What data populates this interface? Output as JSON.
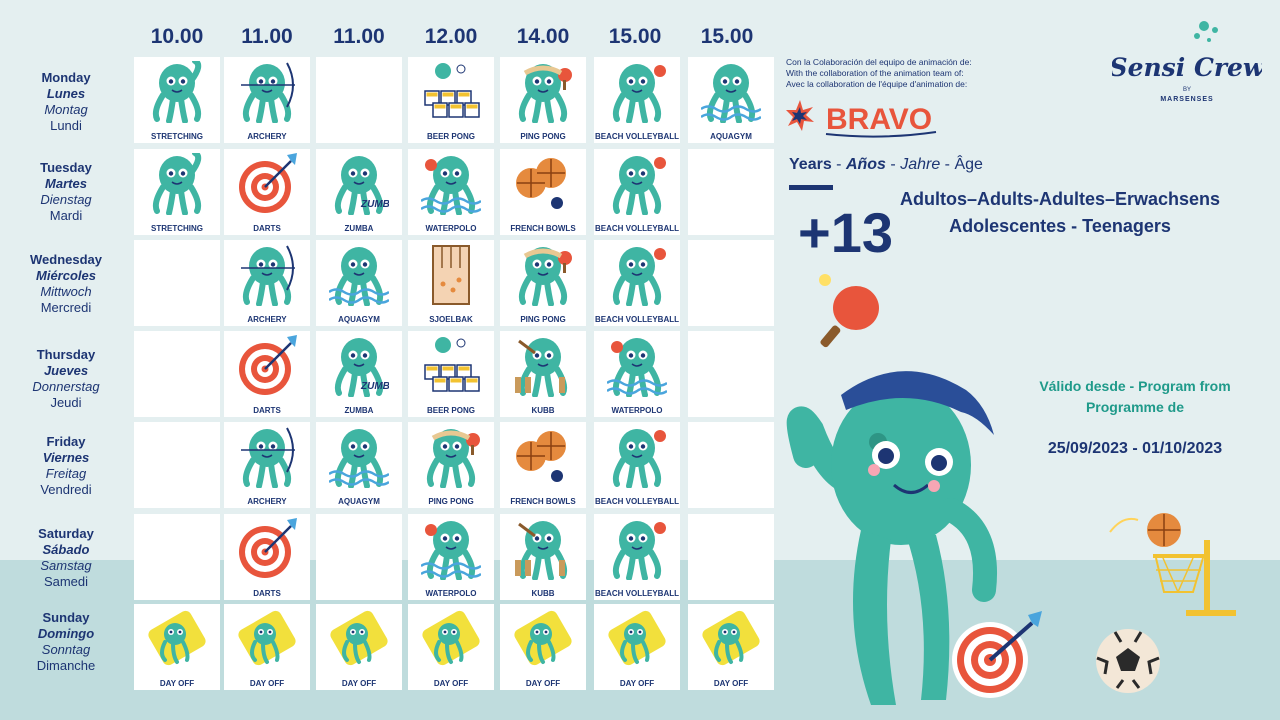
{
  "times": [
    "10.00",
    "11.00",
    "11.00",
    "12.00",
    "14.00",
    "15.00",
    "15.00"
  ],
  "days": [
    {
      "en": "Monday",
      "es": "Lunes",
      "de": "Montag",
      "fr": "Lundi"
    },
    {
      "en": "Tuesday",
      "es": "Martes",
      "de": "Dienstag",
      "fr": "Mardi"
    },
    {
      "en": "Wednesday",
      "es": "Miércoles",
      "de": "Mittwoch",
      "fr": "Mercredi"
    },
    {
      "en": "Thursday",
      "es": "Jueves",
      "de": "Donnerstag",
      "fr": "Jeudi"
    },
    {
      "en": "Friday",
      "es": "Viernes",
      "de": "Freitag",
      "fr": "Vendredi"
    },
    {
      "en": "Saturday",
      "es": "Sábado",
      "de": "Samstag",
      "fr": "Samedi"
    },
    {
      "en": "Sunday",
      "es": "Domingo",
      "de": "Sonntag",
      "fr": "Dimanche"
    }
  ],
  "schedule": [
    [
      "STRETCHING",
      "ARCHERY",
      "",
      "BEER PONG",
      "PING PONG",
      "BEACH VOLLEYBALL",
      "AQUAGYM"
    ],
    [
      "STRETCHING",
      "DARTS",
      "ZUMBA",
      "WATERPOLO",
      "FRENCH BOWLS",
      "BEACH VOLLEYBALL",
      ""
    ],
    [
      "",
      "ARCHERY",
      "AQUAGYM",
      "SJOELBAK",
      "PING PONG",
      "BEACH VOLLEYBALL",
      ""
    ],
    [
      "",
      "DARTS",
      "ZUMBA",
      "BEER PONG",
      "KUBB",
      "WATERPOLO",
      ""
    ],
    [
      "",
      "ARCHERY",
      "AQUAGYM",
      "PING PONG",
      "FRENCH BOWLS",
      "BEACH VOLLEYBALL",
      ""
    ],
    [
      "",
      "DARTS",
      "",
      "WATERPOLO",
      "KUBB",
      "BEACH VOLLEYBALL",
      ""
    ],
    [
      "DAY OFF",
      "DAY OFF",
      "DAY OFF",
      "DAY OFF",
      "DAY OFF",
      "DAY OFF",
      "DAY OFF"
    ]
  ],
  "credits": {
    "es": "Con la Colaboración del equipo de animación de:",
    "en": "With the collaboration of the animation team of:",
    "fr": "Avec la collaboration de l'équipe d'animation de:"
  },
  "bravo_logo": "BRAVO",
  "brand": {
    "name": "Sensi Crew",
    "by": "BY",
    "sub": "MARSENSES"
  },
  "years": {
    "en": "Years",
    "es": "Años",
    "de": "Jahre",
    "fr": "Âge",
    "sep": "-"
  },
  "age": "+13",
  "audience": [
    "Adultos–Adults-Adultes–Erwachsens",
    "Adolescentes - Teenagers"
  ],
  "valid": [
    "Válido desde - Program from",
    "Programme de"
  ],
  "dates": "25/09/2023 - 01/10/2023",
  "colors": {
    "navy": "#1d3573",
    "teal": "#3fb5a3",
    "accent": "#e8553c"
  }
}
